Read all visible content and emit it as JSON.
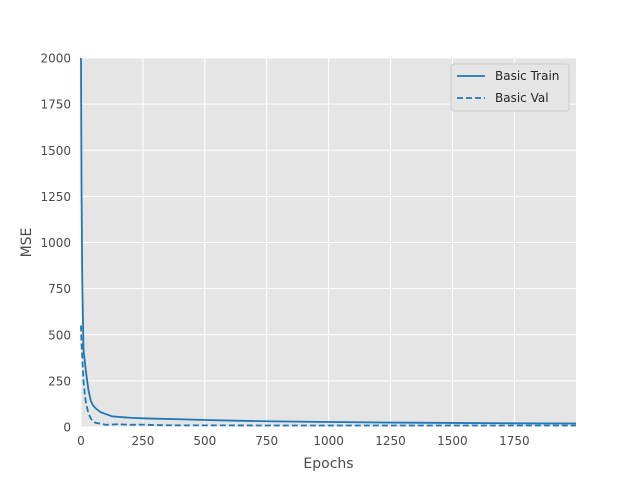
{
  "chart_data": {
    "type": "line",
    "title": "",
    "xlabel": "Epochs",
    "ylabel": "MSE",
    "xlim": [
      0,
      1999
    ],
    "ylim": [
      0,
      2000
    ],
    "xticks": [
      0,
      250,
      500,
      750,
      1000,
      1250,
      1500,
      1750
    ],
    "xtick_labels": [
      "0",
      "250",
      "500",
      "750",
      "1000",
      "1250",
      "1500",
      "1750"
    ],
    "yticks": [
      0,
      250,
      500,
      750,
      1000,
      1250,
      1500,
      1750,
      2000
    ],
    "ytick_labels": [
      "0",
      "250",
      "500",
      "750",
      "1000",
      "1250",
      "1500",
      "1750",
      "2000"
    ],
    "grid": true,
    "legend_position": "top-right",
    "series": [
      {
        "name": "Basic Train",
        "style": "solid",
        "color": "#1f77b4",
        "x": [
          0,
          2,
          5,
          10,
          15,
          20,
          30,
          40,
          50,
          60,
          80,
          100,
          125,
          150,
          200,
          250,
          300,
          400,
          500,
          600,
          750,
          1000,
          1250,
          1500,
          1750,
          1999
        ],
        "y": [
          2000,
          1300,
          800,
          420,
          360,
          300,
          200,
          140,
          115,
          100,
          80,
          70,
          58,
          55,
          50,
          47,
          45,
          42,
          38,
          35,
          31,
          27,
          24,
          22,
          20,
          19
        ]
      },
      {
        "name": "Basic Val",
        "style": "dashed",
        "color": "#1f77b4",
        "x": [
          0,
          2,
          5,
          10,
          15,
          20,
          30,
          40,
          50,
          60,
          80,
          100,
          150,
          200,
          250,
          300,
          400,
          500,
          750,
          1000,
          1250,
          1500,
          1750,
          1999
        ],
        "y": [
          550,
          450,
          380,
          250,
          180,
          130,
          75,
          45,
          30,
          22,
          18,
          12,
          15,
          12,
          13,
          10,
          9,
          9,
          8,
          8,
          8,
          8,
          8,
          8
        ]
      }
    ]
  }
}
